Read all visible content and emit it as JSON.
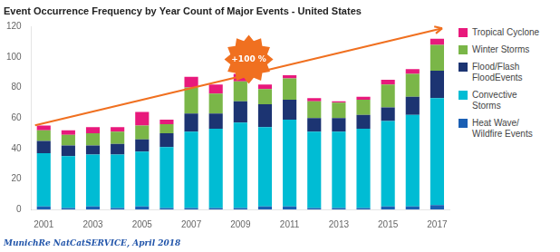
{
  "chart_data": {
    "type": "bar",
    "title": "Event Occurrence Frequency by Year Count of Major Events - United States",
    "footnote": "MunichRe NatCatSERVICE, April 2018",
    "annotations": [
      "+100 %"
    ],
    "categories": [
      "2001",
      null,
      "2003",
      null,
      "2005",
      null,
      "2007",
      null,
      "2009",
      null,
      "2011",
      null,
      "2013",
      null,
      "2015",
      null,
      "2017"
    ],
    "series": [
      {
        "name": "Heat Wave/\nWildfire Events",
        "color": "#1a5fb4",
        "values": [
          2,
          1,
          2,
          1,
          2,
          1,
          1,
          1,
          1,
          2,
          2,
          1,
          1,
          1,
          2,
          2,
          3
        ]
      },
      {
        "name": "Convective\nStorms",
        "color": "#00bcd4",
        "values": [
          35,
          34,
          34,
          35,
          36,
          40,
          50,
          52,
          56,
          52,
          57,
          50,
          50,
          52,
          56,
          60,
          70
        ]
      },
      {
        "name": "Flood/Flash\nFloodEvents",
        "color": "#1c3472",
        "values": [
          8,
          7,
          6,
          7,
          8,
          9,
          12,
          10,
          14,
          15,
          13,
          9,
          9,
          9,
          9,
          12,
          18
        ]
      },
      {
        "name": "Winter Storms",
        "color": "#7ab648",
        "values": [
          7,
          7,
          8,
          8,
          9,
          6,
          17,
          13,
          13,
          10,
          14,
          11,
          10,
          10,
          15,
          15,
          17
        ]
      },
      {
        "name": "Tropical Cyclone",
        "color": "#e8197c",
        "values": [
          3,
          3,
          4,
          3,
          9,
          3,
          7,
          6,
          5,
          3,
          2,
          2,
          1,
          2,
          3,
          3,
          4
        ]
      }
    ],
    "ylim": [
      0,
      120
    ],
    "yticks": [
      0,
      20,
      40,
      60,
      80,
      100,
      120
    ],
    "stacked": true,
    "grid": false,
    "legend": "right"
  }
}
